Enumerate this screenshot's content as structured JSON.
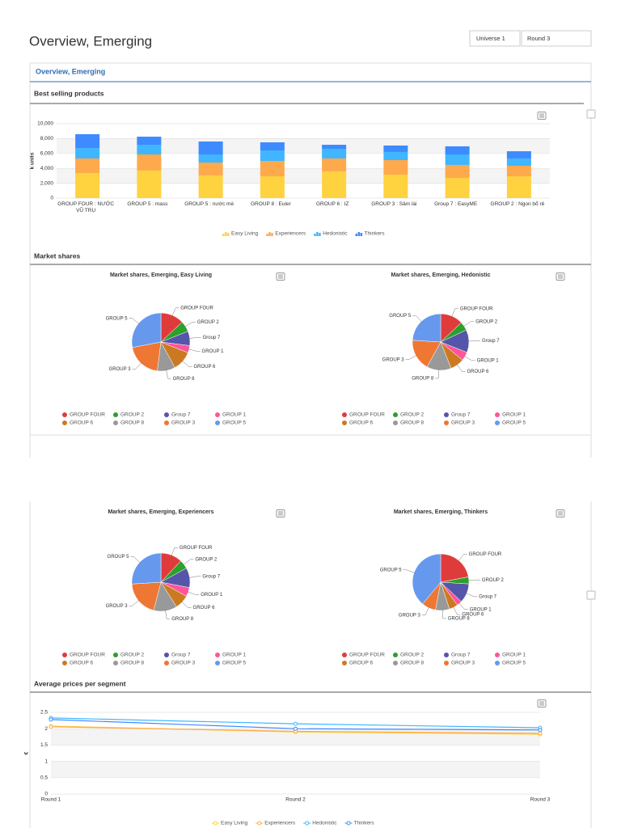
{
  "header": {
    "title": "Overview, Emerging",
    "selectors": [
      "Universe 1",
      "Round 3"
    ]
  },
  "tab": "Overview, Emerging",
  "sections": [
    "Best selling products",
    "Market shares",
    "Average prices per segment"
  ],
  "chart_data": [
    {
      "type": "bar",
      "stacked": true,
      "ylabel": "k units",
      "categories": [
        "GROUP FOUR : NƯỚC VŨ TRỤ",
        "GROUP 5 : mass",
        "GROUP 5 : nước mè",
        "GROUP 8 : Euler",
        "GROUP 6 : IZ",
        "GROUP 3 : Sâm lài",
        "Group 7 : EasyME",
        "GROUP 2 : Ngon bổ rẻ"
      ],
      "series": [
        {
          "name": "Easy Living",
          "color": "#ffd23f",
          "values": [
            3370,
            3700,
            3040,
            2930,
            3590,
            3150,
            2720,
            2930
          ]
        },
        {
          "name": "Experiencers",
          "color": "#ffa94d",
          "values": [
            1960,
            2170,
            1740,
            2070,
            1740,
            1960,
            1740,
            1420
          ]
        },
        {
          "name": "Hedonistic",
          "color": "#3fb6ff",
          "values": [
            1410,
            1300,
            1090,
            1410,
            1300,
            1090,
            1410,
            980
          ]
        },
        {
          "name": "Thinkers",
          "color": "#3d8bff",
          "values": [
            1850,
            1090,
            1740,
            1090,
            540,
            870,
            1090,
            970
          ]
        }
      ],
      "ylim": [
        0,
        10000
      ],
      "yticks": [
        0,
        {
          "value": 2000,
          "label": "2,000"
        },
        {
          "value": 4000,
          "label": "4,000"
        },
        {
          "value": 6000,
          "label": "6,000"
        },
        {
          "value": 8000,
          "label": "8,000"
        },
        {
          "value": 10000,
          "label": "10,000"
        }
      ],
      "grid": true,
      "legend": "bottom"
    },
    {
      "type": "pie",
      "title": "Market shares, Emerging, Easy Living",
      "categories": [
        "GROUP FOUR",
        "GROUP 2",
        "Group 7",
        "GROUP 1",
        "GROUP 6",
        "GROUP 8",
        "GROUP 3",
        "GROUP 5"
      ],
      "colors": [
        "#e03b3b",
        "#2ca02c",
        "#5555aa",
        "#ff5599",
        "#cc7a22",
        "#999999",
        "#ee7733",
        "#6699ee"
      ],
      "values": [
        13,
        6,
        8,
        4,
        11,
        10,
        20,
        28
      ],
      "legend": "bottom"
    },
    {
      "type": "pie",
      "title": "Market shares, Emerging, Hedonistic",
      "categories": [
        "GROUP FOUR",
        "GROUP 2",
        "Group 7",
        "GROUP 1",
        "GROUP 6",
        "GROUP 8",
        "GROUP 3",
        "GROUP 5"
      ],
      "colors": [
        "#e03b3b",
        "#2ca02c",
        "#5555aa",
        "#ff5599",
        "#cc7a22",
        "#999999",
        "#ee7733",
        "#6699ee"
      ],
      "values": [
        13,
        5,
        13,
        5,
        8,
        14,
        18,
        24
      ],
      "legend": "bottom"
    },
    {
      "type": "pie",
      "title": "Market shares, Emerging, Experiencers",
      "categories": [
        "GROUP FOUR",
        "GROUP 2",
        "Group 7",
        "GROUP 1",
        "GROUP 6",
        "GROUP 8",
        "GROUP 3",
        "GROUP 5"
      ],
      "colors": [
        "#e03b3b",
        "#2ca02c",
        "#5555aa",
        "#ff5599",
        "#cc7a22",
        "#999999",
        "#ee7733",
        "#6699ee"
      ],
      "values": [
        12,
        5,
        11,
        5,
        8,
        13,
        20,
        26
      ],
      "legend": "bottom"
    },
    {
      "type": "pie",
      "title": "Market shares, Emerging, Thinkers",
      "categories": [
        "GROUP FOUR",
        "GROUP 2",
        "Group 7",
        "GROUP 1",
        "GROUP 6",
        "GROUP 8",
        "GROUP 3",
        "GROUP 5"
      ],
      "colors": [
        "#e03b3b",
        "#2ca02c",
        "#5555aa",
        "#ff5599",
        "#cc7a22",
        "#999999",
        "#ee7733",
        "#6699ee"
      ],
      "values": [
        22,
        4,
        11,
        3,
        5,
        8,
        8,
        39
      ],
      "legend": "bottom"
    },
    {
      "type": "line",
      "ylabel": "€",
      "categories": [
        "Round 1",
        "Round 2",
        "Round 3"
      ],
      "series": [
        {
          "name": "Easy Living",
          "color": "#ffd23f",
          "values": [
            2.08,
            1.9,
            1.83
          ]
        },
        {
          "name": "Experiencers",
          "color": "#ffa94d",
          "values": [
            2.06,
            1.92,
            1.86
          ]
        },
        {
          "name": "Hedonistic",
          "color": "#3fb6ff",
          "values": [
            2.33,
            2.15,
            2.03
          ]
        },
        {
          "name": "Thinkers",
          "color": "#3d8bff",
          "values": [
            2.28,
            2.0,
            1.96
          ]
        }
      ],
      "ylim": [
        0,
        2.5
      ],
      "yticks": [
        0,
        0.5,
        1,
        1.5,
        2,
        2.5
      ],
      "grid": true,
      "legend": "bottom"
    }
  ]
}
